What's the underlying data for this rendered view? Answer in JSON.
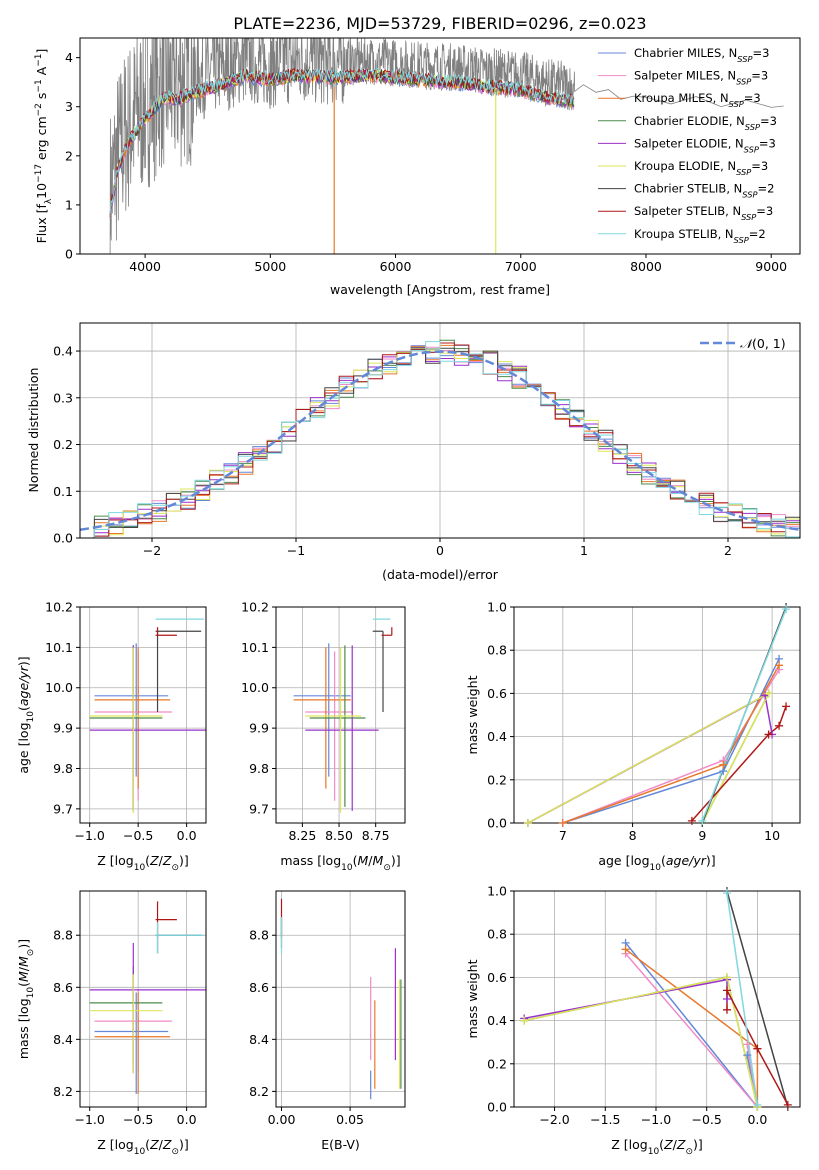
{
  "title": "PLATE=2236, MJD=53729, FIBERID=0296, z=0.023",
  "colors": {
    "chabrier_miles": "#6488d8",
    "salpeter_miles": "#f08cc8",
    "kroupa_miles": "#e8782a",
    "chabrier_elodie": "#4c8a4c",
    "salpeter_elodie": "#9932cc",
    "kroupa_elodie": "#dde65a",
    "chabrier_stelib": "#444444",
    "salpeter_stelib": "#b01818",
    "kroupa_stelib": "#7fd8e0",
    "data": "#808080",
    "gaussian": "#6488d8",
    "grid": "#b0b0b0"
  },
  "legend_top": [
    {
      "key": "chabrier_miles",
      "pre": "Chabrier MILES, N",
      "sub": "SSP",
      "post": "=3"
    },
    {
      "key": "salpeter_miles",
      "pre": "Salpeter MILES, N",
      "sub": "SSP",
      "post": "=3"
    },
    {
      "key": "kroupa_miles",
      "pre": "Kroupa MILES, N",
      "sub": "SSP",
      "post": "=3"
    },
    {
      "key": "chabrier_elodie",
      "pre": "Chabrier ELODIE, N",
      "sub": "SSP",
      "post": "=3"
    },
    {
      "key": "salpeter_elodie",
      "pre": "Salpeter ELODIE, N",
      "sub": "SSP",
      "post": "=3"
    },
    {
      "key": "kroupa_elodie",
      "pre": "Kroupa ELODIE, N",
      "sub": "SSP",
      "post": "=3"
    },
    {
      "key": "chabrier_stelib",
      "pre": "Chabrier STELIB, N",
      "sub": "SSP",
      "post": "=2"
    },
    {
      "key": "salpeter_stelib",
      "pre": "Salpeter STELIB, N",
      "sub": "SSP",
      "post": "=3"
    },
    {
      "key": "kroupa_stelib",
      "pre": "Kroupa STELIB, N",
      "sub": "SSP",
      "post": "=2"
    }
  ],
  "chart_data": [
    {
      "id": "spectrum",
      "type": "line",
      "xlabel": "wavelength [Angstrom, rest frame]",
      "ylabel": "Flux [fλ10⁻¹⁷ erg cm⁻² s⁻¹ A⁻¹]",
      "xlim": [
        3480,
        9230
      ],
      "ylim": [
        0,
        4.4
      ],
      "xticks": [
        4000,
        5000,
        6000,
        7000,
        8000,
        9000
      ],
      "yticks": [
        0,
        1,
        2,
        3,
        4
      ],
      "model_range": [
        3720,
        7430
      ],
      "continuum": {
        "x": [
          3720,
          3780,
          3850,
          3950,
          4050,
          4150,
          4250,
          4400,
          4600,
          4800,
          5000,
          5200,
          5500,
          5800,
          6000,
          6200,
          6500,
          6800,
          7000,
          7200,
          7430
        ],
        "y": [
          1.2,
          2.0,
          2.5,
          2.9,
          3.2,
          3.5,
          3.45,
          3.6,
          3.75,
          3.95,
          3.85,
          3.95,
          3.9,
          3.95,
          3.9,
          3.85,
          3.8,
          3.7,
          3.65,
          3.5,
          3.4
        ]
      },
      "data_continuation": {
        "x": [
          7430,
          7500,
          7600,
          7700,
          7800,
          7900,
          8000,
          8200,
          8400,
          8600,
          8800,
          9000,
          9100
        ],
        "y": [
          3.35,
          3.4,
          3.3,
          3.35,
          3.1,
          3.2,
          3.15,
          3.1,
          3.15,
          3.05,
          3.1,
          3.0,
          3.05
        ]
      },
      "notes": "Observed spectrum (gray) with nine overlaid model fits; dips near 5500 and 6800 Angstrom."
    },
    {
      "id": "residuals",
      "type": "area",
      "xlabel": "(data-model)/error",
      "ylabel": "Normed distribution",
      "xlim": [
        -2.5,
        2.5
      ],
      "ylim": [
        0,
        0.46
      ],
      "xticks": [
        -2,
        -1,
        0,
        1,
        2
      ],
      "yticks": [
        0.0,
        0.1,
        0.2,
        0.3,
        0.4
      ],
      "legend": "N(0,1)",
      "bin_width": 0.1,
      "notes": "Nine step histograms of normalized residuals following the standard normal curve."
    },
    {
      "id": "Z_vs_age",
      "type": "scatter",
      "xlabel": "Z [log10(Z/Z⊙)]",
      "ylabel": "age  [log10(age/yr)]",
      "xlim": [
        -1.1,
        0.2
      ],
      "ylim": [
        9.665,
        10.2
      ],
      "xticks": [
        -1.0,
        -0.5,
        0.0
      ],
      "yticks": [
        9.7,
        9.8,
        9.9,
        10.0,
        10.1,
        10.2
      ],
      "points": [
        {
          "key": "chabrier_miles",
          "x": -0.52,
          "xerr": [
            0.43,
            0.33
          ],
          "y": 9.98,
          "yerr": [
            0.2,
            0.13
          ]
        },
        {
          "key": "salpeter_miles",
          "x": -0.5,
          "xerr": [
            0.45,
            0.35
          ],
          "y": 9.94,
          "yerr": [
            0.22,
            0.15
          ]
        },
        {
          "key": "kroupa_miles",
          "x": -0.5,
          "xerr": [
            0.45,
            0.33
          ],
          "y": 9.97,
          "yerr": [
            0.22,
            0.13
          ]
        },
        {
          "key": "chabrier_elodie",
          "x": -0.55,
          "xerr": [
            0.45,
            0.3
          ],
          "y": 9.925,
          "yerr": [
            0.22,
            0.18
          ]
        },
        {
          "key": "salpeter_elodie",
          "x": -0.55,
          "xerr": [
            0.45,
            0.75
          ],
          "y": 9.895,
          "yerr": [
            0.2,
            0.21
          ]
        },
        {
          "key": "kroupa_elodie",
          "x": -0.55,
          "xerr": [
            0.45,
            0.3
          ],
          "y": 9.93,
          "yerr": [
            0.24,
            0.17
          ]
        },
        {
          "key": "chabrier_stelib",
          "x": -0.3,
          "xerr": [
            0.02,
            0.45
          ],
          "y": 10.14,
          "yerr": [
            0.2,
            0.0
          ]
        },
        {
          "key": "salpeter_stelib",
          "x": -0.3,
          "xerr": [
            0.02,
            0.2
          ],
          "y": 10.13,
          "yerr": [
            0.0,
            0.02
          ]
        },
        {
          "key": "kroupa_stelib",
          "x": -0.3,
          "xerr": [
            0.02,
            0.48
          ],
          "y": 10.17,
          "yerr": [
            0.0,
            0.0
          ]
        }
      ]
    },
    {
      "id": "mass_vs_age",
      "type": "scatter",
      "xlabel": "mass [log10(M/M⊙)]",
      "ylabel": "",
      "xlim": [
        8.07,
        8.95
      ],
      "ylim": [
        9.665,
        10.2
      ],
      "xticks": [
        8.25,
        8.5,
        8.75
      ],
      "yticks": [
        9.7,
        9.8,
        9.9,
        10.0,
        10.1,
        10.2
      ],
      "points": [
        {
          "key": "chabrier_miles",
          "x": 8.43,
          "xerr": [
            0.24,
            0.15
          ],
          "y": 9.98,
          "yerr": [
            0.2,
            0.13
          ]
        },
        {
          "key": "salpeter_miles",
          "x": 8.47,
          "xerr": [
            0.2,
            0.12
          ],
          "y": 9.94,
          "yerr": [
            0.22,
            0.15
          ]
        },
        {
          "key": "kroupa_miles",
          "x": 8.41,
          "xerr": [
            0.22,
            0.17
          ],
          "y": 9.97,
          "yerr": [
            0.22,
            0.13
          ]
        },
        {
          "key": "chabrier_elodie",
          "x": 8.54,
          "xerr": [
            0.24,
            0.14
          ],
          "y": 9.925,
          "yerr": [
            0.22,
            0.18
          ]
        },
        {
          "key": "salpeter_elodie",
          "x": 8.59,
          "xerr": [
            0.32,
            0.18
          ],
          "y": 9.895,
          "yerr": [
            0.2,
            0.21
          ]
        },
        {
          "key": "kroupa_elodie",
          "x": 8.51,
          "xerr": [
            0.24,
            0.14
          ],
          "y": 9.93,
          "yerr": [
            0.24,
            0.17
          ]
        },
        {
          "key": "chabrier_stelib",
          "x": 8.8,
          "xerr": [
            0.07,
            0.0
          ],
          "y": 10.14,
          "yerr": [
            0.2,
            0.0
          ]
        },
        {
          "key": "salpeter_stelib",
          "x": 8.86,
          "xerr": [
            0.07,
            0.0
          ],
          "y": 10.13,
          "yerr": [
            0.0,
            0.02
          ]
        },
        {
          "key": "kroupa_stelib",
          "x": 8.8,
          "xerr": [
            0.07,
            0.05
          ],
          "y": 10.17,
          "yerr": [
            0.0,
            0.0
          ]
        }
      ]
    },
    {
      "id": "age_vs_weight",
      "type": "line",
      "xlabel": "age  [log10(age/yr)]",
      "ylabel": "mass weight",
      "xlim": [
        6.3,
        10.4
      ],
      "ylim": [
        0,
        1
      ],
      "xticks": [
        7,
        8,
        9,
        10
      ],
      "yticks": [
        0.0,
        0.2,
        0.4,
        0.6,
        0.8,
        1.0
      ],
      "series": [
        {
          "key": "chabrier_miles",
          "x": [
            7.0,
            9.3,
            10.1
          ],
          "y": [
            0.0,
            0.24,
            0.76
          ]
        },
        {
          "key": "salpeter_miles",
          "x": [
            7.0,
            9.3,
            10.1
          ],
          "y": [
            0.0,
            0.29,
            0.71
          ]
        },
        {
          "key": "kroupa_miles",
          "x": [
            7.0,
            9.3,
            10.1
          ],
          "y": [
            0.0,
            0.27,
            0.73
          ]
        },
        {
          "key": "chabrier_elodie",
          "x": [
            6.5,
            9.95,
            9.0
          ],
          "y": [
            0.0,
            0.6,
            0.0
          ]
        },
        {
          "key": "salpeter_elodie",
          "x": [
            6.5,
            9.9,
            10.0
          ],
          "y": [
            0.0,
            0.59,
            0.41
          ]
        },
        {
          "key": "kroupa_elodie",
          "x": [
            6.5,
            9.95,
            9.0
          ],
          "y": [
            0.0,
            0.6,
            0.0
          ]
        },
        {
          "key": "chabrier_stelib",
          "x": [
            9.0,
            10.2
          ],
          "y": [
            0.0,
            1.0
          ]
        },
        {
          "key": "salpeter_stelib",
          "x": [
            8.85,
            9.95,
            10.1,
            10.2
          ],
          "y": [
            0.01,
            0.41,
            0.45,
            0.54
          ]
        },
        {
          "key": "kroupa_stelib",
          "x": [
            9.0,
            10.2
          ],
          "y": [
            0.01,
            0.99
          ]
        }
      ]
    },
    {
      "id": "Z_vs_mass",
      "type": "scatter",
      "xlabel": "Z [log10(Z/Z⊙)]",
      "ylabel": "mass [log10(M/M⊙)]",
      "xlim": [
        -1.1,
        0.2
      ],
      "ylim": [
        8.14,
        8.97
      ],
      "xticks": [
        -1.0,
        -0.5,
        0.0
      ],
      "yticks": [
        8.2,
        8.4,
        8.6,
        8.8
      ],
      "points": [
        {
          "key": "chabrier_miles",
          "x": -0.52,
          "xerr": [
            0.43,
            0.33
          ],
          "y": 8.43,
          "yerr": [
            0.24,
            0.15
          ]
        },
        {
          "key": "salpeter_miles",
          "x": -0.5,
          "xerr": [
            0.45,
            0.35
          ],
          "y": 8.47,
          "yerr": [
            0.2,
            0.12
          ]
        },
        {
          "key": "kroupa_miles",
          "x": -0.5,
          "xerr": [
            0.45,
            0.33
          ],
          "y": 8.41,
          "yerr": [
            0.22,
            0.17
          ]
        },
        {
          "key": "chabrier_elodie",
          "x": -0.55,
          "xerr": [
            0.45,
            0.3
          ],
          "y": 8.54,
          "yerr": [
            0.24,
            0.14
          ]
        },
        {
          "key": "salpeter_elodie",
          "x": -0.55,
          "xerr": [
            0.45,
            0.75
          ],
          "y": 8.59,
          "yerr": [
            0.32,
            0.18
          ]
        },
        {
          "key": "kroupa_elodie",
          "x": -0.55,
          "xerr": [
            0.45,
            0.3
          ],
          "y": 8.51,
          "yerr": [
            0.24,
            0.14
          ]
        },
        {
          "key": "chabrier_stelib",
          "x": -0.3,
          "xerr": [
            0.02,
            0.45
          ],
          "y": 8.8,
          "yerr": [
            0.07,
            0.0
          ]
        },
        {
          "key": "salpeter_stelib",
          "x": -0.3,
          "xerr": [
            0.02,
            0.2
          ],
          "y": 8.86,
          "yerr": [
            0.07,
            0.07
          ]
        },
        {
          "key": "kroupa_stelib",
          "x": -0.3,
          "xerr": [
            0.02,
            0.48
          ],
          "y": 8.8,
          "yerr": [
            0.07,
            0.05
          ]
        }
      ]
    },
    {
      "id": "ebv_vs_mass",
      "type": "scatter",
      "xlabel": "E(B-V)",
      "ylabel": "",
      "xlim": [
        -0.004,
        0.09
      ],
      "ylim": [
        8.14,
        8.97
      ],
      "xticks": [
        0.0,
        0.05
      ],
      "yticks": [
        8.2,
        8.4,
        8.6,
        8.8
      ],
      "points": [
        {
          "key": "chabrier_miles",
          "x": 0.065,
          "y": 8.28,
          "yerr": [
            0.11,
            0.0
          ]
        },
        {
          "key": "salpeter_miles",
          "x": 0.065,
          "y": 8.52,
          "yerr": [
            0.2,
            0.12
          ]
        },
        {
          "key": "kroupa_miles",
          "x": 0.068,
          "y": 8.38,
          "yerr": [
            0.17,
            0.17
          ]
        },
        {
          "key": "chabrier_elodie",
          "x": 0.087,
          "y": 8.45,
          "yerr": [
            0.24,
            0.18
          ]
        },
        {
          "key": "salpeter_elodie",
          "x": 0.083,
          "y": 8.54,
          "yerr": [
            0.22,
            0.21
          ]
        },
        {
          "key": "kroupa_elodie",
          "x": 0.086,
          "y": 8.45,
          "yerr": [
            0.24,
            0.18
          ]
        },
        {
          "key": "chabrier_stelib",
          "x": 0.0,
          "y": 8.82,
          "yerr": [
            0.07,
            0.05
          ]
        },
        {
          "key": "salpeter_stelib",
          "x": 0.0,
          "y": 8.86,
          "yerr": [
            0.07,
            0.08
          ]
        },
        {
          "key": "kroupa_stelib",
          "x": 0.0,
          "y": 8.8,
          "yerr": [
            0.07,
            0.07
          ]
        }
      ]
    },
    {
      "id": "Z_vs_weight",
      "type": "line",
      "xlabel": "Z [log10(Z/Z⊙)]",
      "ylabel": "mass weight",
      "xlim": [
        -2.4,
        0.42
      ],
      "ylim": [
        0,
        1
      ],
      "xticks": [
        -2.0,
        -1.5,
        -1.0,
        -0.5,
        0.0
      ],
      "yticks": [
        0.0,
        0.2,
        0.4,
        0.6,
        0.8,
        1.0
      ],
      "series": [
        {
          "key": "chabrier_miles",
          "x": [
            -1.3,
            0.0,
            -0.1
          ],
          "y": [
            0.76,
            0.0,
            0.24
          ]
        },
        {
          "key": "salpeter_miles",
          "x": [
            -1.3,
            0.0,
            -0.1
          ],
          "y": [
            0.71,
            0.0,
            0.29
          ]
        },
        {
          "key": "kroupa_miles",
          "x": [
            -1.3,
            0.0,
            0.0
          ],
          "y": [
            0.73,
            0.27,
            0.0
          ]
        },
        {
          "key": "chabrier_elodie",
          "x": [
            -2.3,
            -0.3,
            0.0
          ],
          "y": [
            0.4,
            0.6,
            0.0
          ]
        },
        {
          "key": "salpeter_elodie",
          "x": [
            -2.3,
            -0.3,
            -0.3
          ],
          "y": [
            0.41,
            0.59,
            0.5
          ]
        },
        {
          "key": "kroupa_elodie",
          "x": [
            -2.3,
            -0.3,
            0.0
          ],
          "y": [
            0.4,
            0.6,
            0.0
          ]
        },
        {
          "key": "chabrier_stelib",
          "x": [
            -0.3,
            0.3
          ],
          "y": [
            1.0,
            0.0
          ]
        },
        {
          "key": "salpeter_stelib",
          "x": [
            -0.3,
            -0.3,
            0.0,
            0.3
          ],
          "y": [
            0.45,
            0.54,
            0.27,
            0.01
          ]
        },
        {
          "key": "kroupa_stelib",
          "x": [
            -0.3,
            0.0
          ],
          "y": [
            0.99,
            0.01
          ]
        }
      ]
    }
  ]
}
